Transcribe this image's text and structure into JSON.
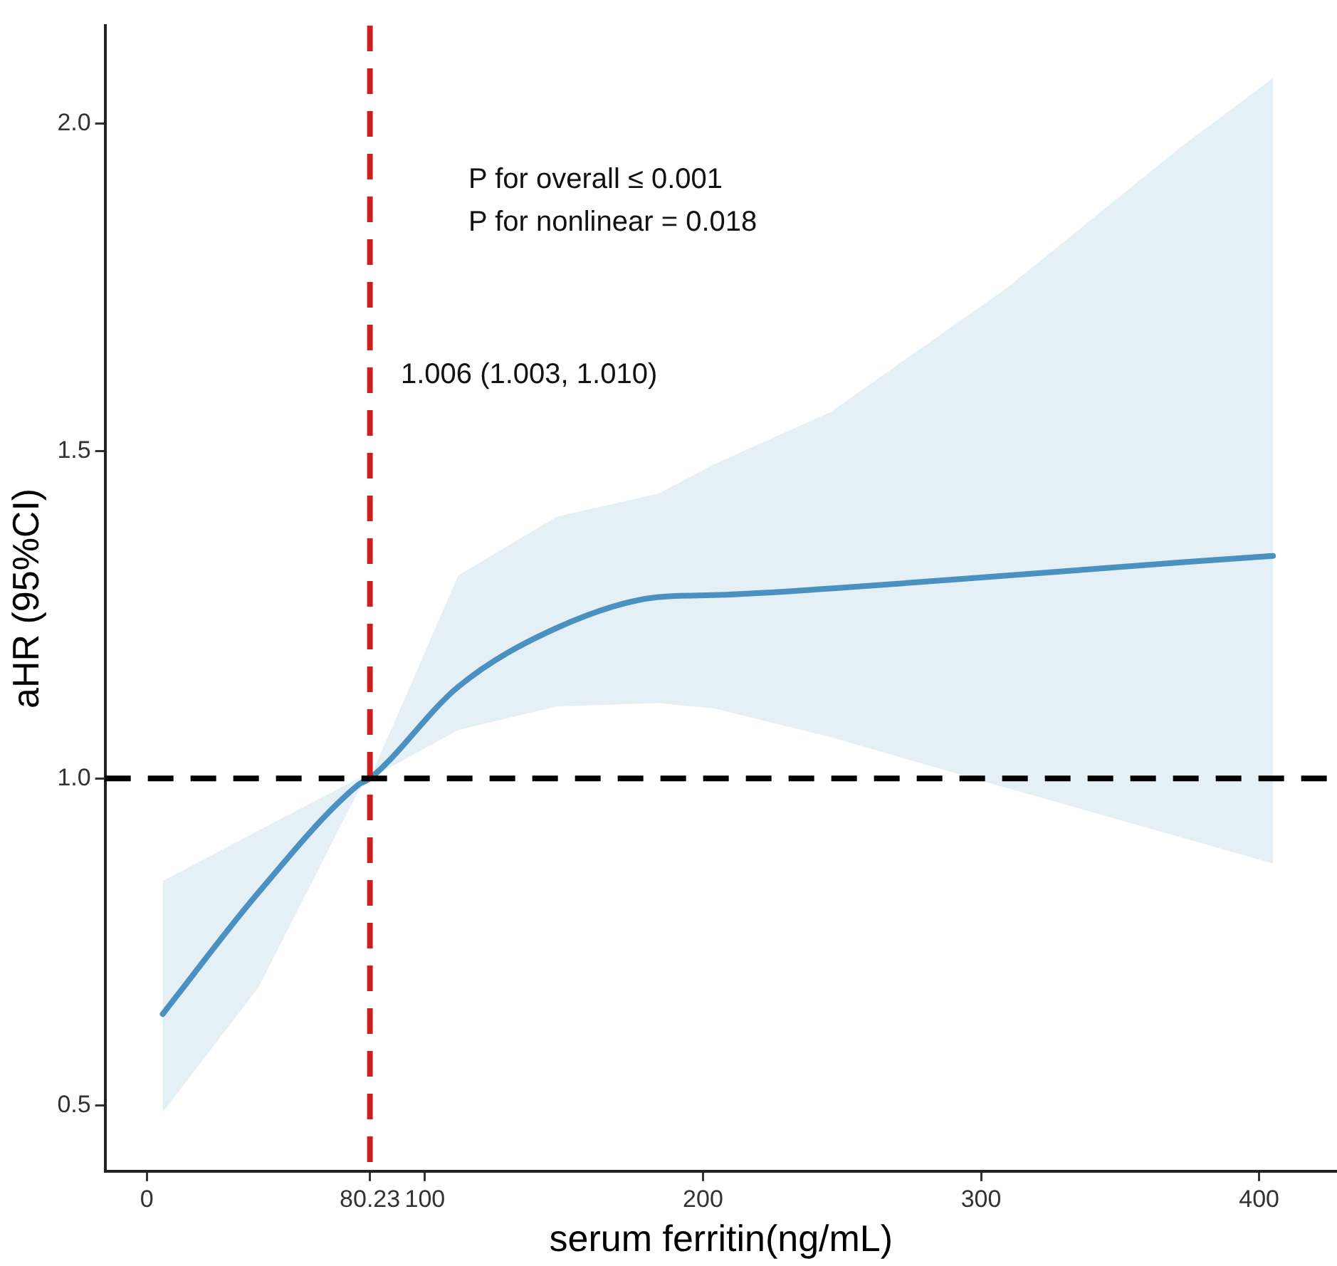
{
  "chart_data": {
    "type": "line",
    "xlabel": "serum ferritin(ng/mL)",
    "ylabel": "aHR (95%CI)",
    "xlim": [
      -15,
      428
    ],
    "ylim": [
      0.4,
      2.15
    ],
    "xticks": [
      0,
      {
        "value": 80.23,
        "label": "80.23"
      },
      100,
      200,
      300,
      400
    ],
    "yticks": [
      0.5,
      {
        "value": 1,
        "label": "1.0"
      },
      1.5,
      {
        "value": 2,
        "label": "2.0"
      }
    ],
    "grid": false,
    "legend": false,
    "marker": "none",
    "line_style": "solid",
    "series": [
      {
        "color": "#4a90c0",
        "x": [
          5.7,
          40,
          76,
          80.23,
          112,
          147.5,
          184,
          204,
          246,
          309.5,
          372,
          405
        ],
        "values": [
          0.64,
          0.825,
          0.99,
          1.0,
          1.14,
          1.23,
          1.277,
          1.28,
          1.29,
          1.31,
          1.33,
          1.34
        ],
        "lower": [
          0.49,
          0.68,
          0.98,
          1.0,
          1.074,
          1.11,
          1.115,
          1.107,
          1.063,
          0.985,
          0.91,
          0.87
        ],
        "upper": [
          0.843,
          0.92,
          1.0,
          1.0,
          1.31,
          1.4,
          1.435,
          1.48,
          1.56,
          1.75,
          1.965,
          2.07
        ]
      }
    ],
    "ref_lines": [
      {
        "axis": "x",
        "value": 80.23,
        "color": "#cc1f1f",
        "line_style": "dashed"
      },
      {
        "axis": "y",
        "value": 1,
        "color": "#000000",
        "line_style": "dashed"
      }
    ],
    "annotations": [
      "P for overall ≤ 0.001",
      "P for nonlinear = 0.018",
      "1.006 (1.003, 1.010)"
    ]
  }
}
